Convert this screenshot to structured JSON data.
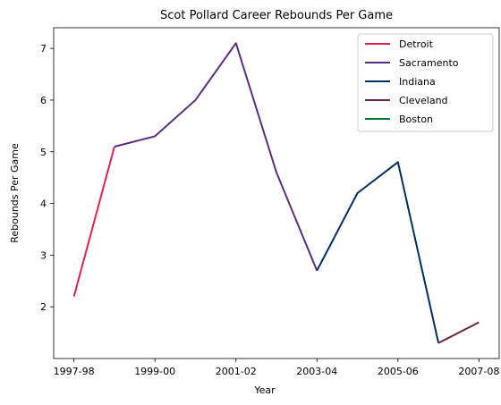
{
  "chart_data": {
    "type": "line",
    "title": "Scot Pollard Career Rebounds Per Game",
    "xlabel": "Year",
    "ylabel": "Rebounds Per Game",
    "x": [
      "1997-98",
      "1998-99",
      "1999-00",
      "2000-01",
      "2001-02",
      "2002-03",
      "2003-04",
      "2004-05",
      "2005-06",
      "2006-07",
      "2007-08"
    ],
    "xticks": [
      "1997-98",
      "1999-00",
      "2001-02",
      "2003-04",
      "2005-06",
      "2007-08"
    ],
    "yticks": [
      2,
      3,
      4,
      5,
      6,
      7
    ],
    "ylim": [
      1.0,
      7.4
    ],
    "grid": false,
    "legend_position": "top-right",
    "series": [
      {
        "name": "Detroit",
        "color": "#e0204f",
        "points": [
          [
            "1997-98",
            2.2
          ],
          [
            "1998-99",
            5.1
          ]
        ]
      },
      {
        "name": "Sacramento",
        "color": "#5b2d82",
        "points": [
          [
            "1998-99",
            5.1
          ],
          [
            "1999-00",
            5.3
          ],
          [
            "2000-01",
            6.0
          ],
          [
            "2001-02",
            7.1
          ],
          [
            "2002-03",
            4.6
          ],
          [
            "2003-04",
            2.7
          ]
        ]
      },
      {
        "name": "Indiana",
        "color": "#002d62",
        "points": [
          [
            "2003-04",
            2.7
          ],
          [
            "2004-05",
            4.2
          ],
          [
            "2005-06",
            4.8
          ],
          [
            "2006-07",
            1.3
          ]
        ]
      },
      {
        "name": "Cleveland",
        "color": "#6f263d",
        "points": [
          [
            "2006-07",
            1.3
          ],
          [
            "2007-08",
            1.7
          ]
        ]
      },
      {
        "name": "Boston",
        "color": "#007a33",
        "points": []
      }
    ]
  }
}
